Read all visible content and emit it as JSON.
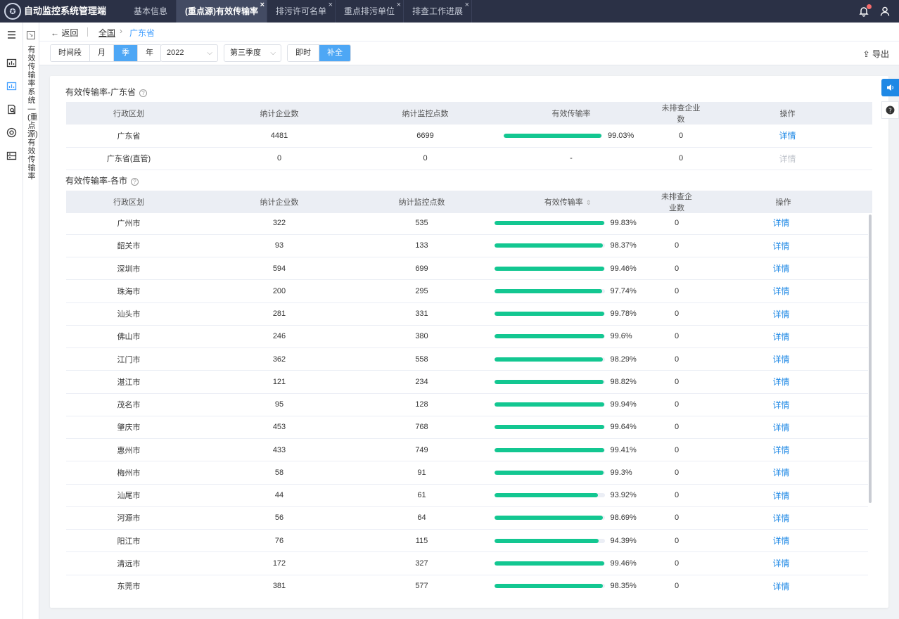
{
  "app": {
    "title": "自动监控系统管理端"
  },
  "tabs": [
    {
      "label": "基本信息",
      "active": false,
      "closable": false
    },
    {
      "label": "(重点源)有效传输率",
      "active": true,
      "closable": true
    },
    {
      "label": "排污许可名单",
      "active": false,
      "closable": true
    },
    {
      "label": "重点排污单位",
      "active": false,
      "closable": true
    },
    {
      "label": "排查工作进展",
      "active": false,
      "closable": true
    }
  ],
  "subnav": {
    "text": "有效传输率系统—(重点源)有效传输率"
  },
  "breadcrumb": {
    "back": "返回",
    "root": "全国",
    "current": "广东省"
  },
  "toolbar": {
    "period_buttons": [
      "时间段",
      "月",
      "季",
      "年"
    ],
    "period_active": "季",
    "year": "2022",
    "quarter": "第三季度",
    "mode_buttons": [
      "即时",
      "补全"
    ],
    "mode_active": "补全",
    "export": "导出"
  },
  "colors": {
    "accent": "#409eff",
    "bar_fill": "#13c791",
    "header_bg": "#2b3146"
  },
  "province_section": {
    "title": "有效传输率-广东省",
    "columns": [
      "行政区划",
      "纳计企业数",
      "纳计监控点数",
      "有效传输率",
      "未排查企业数",
      "操作"
    ],
    "rows": [
      {
        "region": "广东省",
        "companies": "4481",
        "points": "6699",
        "rate": 99.03,
        "rate_text": "99.03%",
        "unchecked": "0",
        "action": "详情",
        "action_enabled": true
      },
      {
        "region": "广东省(直管)",
        "companies": "0",
        "points": "0",
        "rate": null,
        "rate_text": "-",
        "unchecked": "0",
        "action": "详情",
        "action_enabled": false
      }
    ]
  },
  "city_section": {
    "title": "有效传输率-各市",
    "columns": [
      "行政区划",
      "纳计企业数",
      "纳计监控点数",
      "有效传输率",
      "未排查企业数",
      "操作"
    ],
    "rows": [
      {
        "region": "广州市",
        "companies": "322",
        "points": "535",
        "rate": 99.83,
        "rate_text": "99.83%",
        "unchecked": "0",
        "action": "详情"
      },
      {
        "region": "韶关市",
        "companies": "93",
        "points": "133",
        "rate": 98.37,
        "rate_text": "98.37%",
        "unchecked": "0",
        "action": "详情"
      },
      {
        "region": "深圳市",
        "companies": "594",
        "points": "699",
        "rate": 99.46,
        "rate_text": "99.46%",
        "unchecked": "0",
        "action": "详情"
      },
      {
        "region": "珠海市",
        "companies": "200",
        "points": "295",
        "rate": 97.74,
        "rate_text": "97.74%",
        "unchecked": "0",
        "action": "详情"
      },
      {
        "region": "汕头市",
        "companies": "281",
        "points": "331",
        "rate": 99.78,
        "rate_text": "99.78%",
        "unchecked": "0",
        "action": "详情"
      },
      {
        "region": "佛山市",
        "companies": "246",
        "points": "380",
        "rate": 99.6,
        "rate_text": "99.6%",
        "unchecked": "0",
        "action": "详情"
      },
      {
        "region": "江门市",
        "companies": "362",
        "points": "558",
        "rate": 98.29,
        "rate_text": "98.29%",
        "unchecked": "0",
        "action": "详情"
      },
      {
        "region": "湛江市",
        "companies": "121",
        "points": "234",
        "rate": 98.82,
        "rate_text": "98.82%",
        "unchecked": "0",
        "action": "详情"
      },
      {
        "region": "茂名市",
        "companies": "95",
        "points": "128",
        "rate": 99.94,
        "rate_text": "99.94%",
        "unchecked": "0",
        "action": "详情"
      },
      {
        "region": "肇庆市",
        "companies": "453",
        "points": "768",
        "rate": 99.64,
        "rate_text": "99.64%",
        "unchecked": "0",
        "action": "详情"
      },
      {
        "region": "惠州市",
        "companies": "433",
        "points": "749",
        "rate": 99.41,
        "rate_text": "99.41%",
        "unchecked": "0",
        "action": "详情"
      },
      {
        "region": "梅州市",
        "companies": "58",
        "points": "91",
        "rate": 99.3,
        "rate_text": "99.3%",
        "unchecked": "0",
        "action": "详情"
      },
      {
        "region": "汕尾市",
        "companies": "44",
        "points": "61",
        "rate": 93.92,
        "rate_text": "93.92%",
        "unchecked": "0",
        "action": "详情"
      },
      {
        "region": "河源市",
        "companies": "56",
        "points": "64",
        "rate": 98.69,
        "rate_text": "98.69%",
        "unchecked": "0",
        "action": "详情"
      },
      {
        "region": "阳江市",
        "companies": "76",
        "points": "115",
        "rate": 94.39,
        "rate_text": "94.39%",
        "unchecked": "0",
        "action": "详情"
      },
      {
        "region": "清远市",
        "companies": "172",
        "points": "327",
        "rate": 99.46,
        "rate_text": "99.46%",
        "unchecked": "0",
        "action": "详情"
      },
      {
        "region": "东莞市",
        "companies": "381",
        "points": "577",
        "rate": 98.35,
        "rate_text": "98.35%",
        "unchecked": "0",
        "action": "详情"
      }
    ]
  }
}
